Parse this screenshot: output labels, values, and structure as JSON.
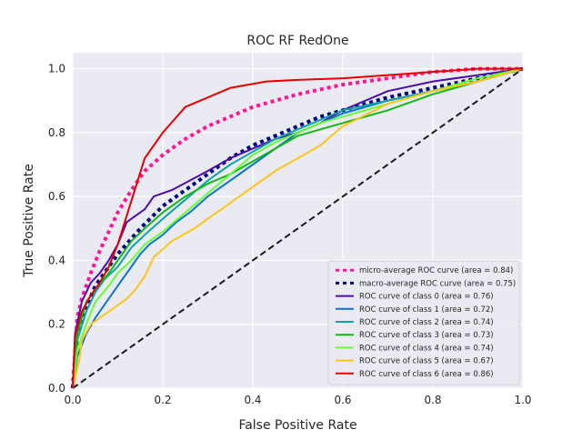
{
  "chart_data": {
    "type": "line",
    "title": "ROC RF RedOne",
    "xlabel": "False Positive Rate",
    "ylabel": "True Positive Rate",
    "xlim": [
      0.0,
      1.0
    ],
    "ylim": [
      0.0,
      1.05
    ],
    "xticks": [
      0.0,
      0.2,
      0.4,
      0.6,
      0.8,
      1.0
    ],
    "yticks": [
      0.0,
      0.2,
      0.4,
      0.6,
      0.8,
      1.0
    ],
    "xtick_labels": [
      "0.0",
      "0.2",
      "0.4",
      "0.6",
      "0.8",
      "1.0"
    ],
    "ytick_labels": [
      "0.0",
      "0.2",
      "0.4",
      "0.6",
      "0.8",
      "1.0"
    ],
    "grid": true,
    "legend_position": "lower-right",
    "background": "#eaeaf2",
    "series": [
      {
        "name": "micro-average ROC curve (area = 0.84)",
        "style": "dotted",
        "color": "#ff1493",
        "x": [
          0.0,
          0.01,
          0.02,
          0.04,
          0.06,
          0.08,
          0.1,
          0.13,
          0.16,
          0.2,
          0.25,
          0.3,
          0.35,
          0.4,
          0.45,
          0.5,
          0.6,
          0.7,
          0.8,
          0.9,
          1.0
        ],
        "y": [
          0.0,
          0.22,
          0.28,
          0.36,
          0.43,
          0.49,
          0.55,
          0.62,
          0.68,
          0.73,
          0.78,
          0.82,
          0.85,
          0.88,
          0.9,
          0.92,
          0.95,
          0.97,
          0.99,
          1.0,
          1.0
        ]
      },
      {
        "name": "macro-average ROC curve (area = 0.75)",
        "style": "dotted",
        "color": "#000080",
        "x": [
          0.0,
          0.01,
          0.02,
          0.05,
          0.08,
          0.1,
          0.15,
          0.2,
          0.25,
          0.3,
          0.35,
          0.4,
          0.45,
          0.5,
          0.55,
          0.6,
          0.7,
          0.8,
          0.9,
          1.0
        ],
        "y": [
          0.0,
          0.17,
          0.22,
          0.32,
          0.38,
          0.42,
          0.5,
          0.57,
          0.62,
          0.67,
          0.72,
          0.76,
          0.79,
          0.82,
          0.85,
          0.87,
          0.91,
          0.94,
          0.97,
          1.0
        ]
      },
      {
        "name": "ROC curve of class 0 (area = 0.76)",
        "style": "solid",
        "color": "#4b0fa8",
        "x": [
          0.0,
          0.005,
          0.02,
          0.04,
          0.06,
          0.08,
          0.1,
          0.12,
          0.14,
          0.16,
          0.18,
          0.22,
          0.26,
          0.3,
          0.35,
          0.4,
          0.45,
          0.5,
          0.55,
          0.6,
          0.7,
          0.8,
          0.9,
          1.0
        ],
        "y": [
          0.0,
          0.17,
          0.27,
          0.33,
          0.36,
          0.4,
          0.45,
          0.52,
          0.54,
          0.56,
          0.6,
          0.62,
          0.65,
          0.68,
          0.72,
          0.75,
          0.78,
          0.8,
          0.83,
          0.87,
          0.93,
          0.96,
          0.98,
          1.0
        ]
      },
      {
        "name": "ROC curve of class 1 (area = 0.72)",
        "style": "solid",
        "color": "#0d74d3",
        "x": [
          0.0,
          0.01,
          0.03,
          0.05,
          0.07,
          0.09,
          0.11,
          0.13,
          0.15,
          0.17,
          0.2,
          0.23,
          0.26,
          0.3,
          0.35,
          0.4,
          0.45,
          0.5,
          0.6,
          0.7,
          0.8,
          0.9,
          1.0
        ],
        "y": [
          0.0,
          0.1,
          0.17,
          0.22,
          0.26,
          0.3,
          0.34,
          0.38,
          0.42,
          0.45,
          0.48,
          0.52,
          0.55,
          0.6,
          0.65,
          0.7,
          0.75,
          0.8,
          0.86,
          0.9,
          0.93,
          0.96,
          1.0
        ]
      },
      {
        "name": "ROC curve of class 2 (area = 0.74)",
        "style": "solid",
        "color": "#0fa3a3",
        "x": [
          0.0,
          0.01,
          0.03,
          0.05,
          0.07,
          0.1,
          0.13,
          0.16,
          0.2,
          0.25,
          0.3,
          0.35,
          0.4,
          0.45,
          0.5,
          0.55,
          0.6,
          0.7,
          0.8,
          0.9,
          1.0
        ],
        "y": [
          0.0,
          0.15,
          0.24,
          0.3,
          0.34,
          0.38,
          0.44,
          0.48,
          0.53,
          0.59,
          0.65,
          0.7,
          0.74,
          0.78,
          0.81,
          0.84,
          0.87,
          0.9,
          0.93,
          0.96,
          1.0
        ]
      },
      {
        "name": "ROC curve of class 3 (area = 0.73)",
        "style": "solid",
        "color": "#12b812",
        "x": [
          0.0,
          0.01,
          0.03,
          0.05,
          0.08,
          0.1,
          0.13,
          0.16,
          0.2,
          0.25,
          0.3,
          0.35,
          0.4,
          0.45,
          0.5,
          0.55,
          0.6,
          0.7,
          0.8,
          0.9,
          1.0
        ],
        "y": [
          0.0,
          0.17,
          0.27,
          0.31,
          0.36,
          0.4,
          0.46,
          0.5,
          0.55,
          0.6,
          0.64,
          0.67,
          0.71,
          0.75,
          0.79,
          0.81,
          0.83,
          0.87,
          0.92,
          0.96,
          1.0
        ]
      },
      {
        "name": "ROC curve of class 4 (area = 0.74)",
        "style": "solid",
        "color": "#66ff33",
        "x": [
          0.0,
          0.01,
          0.03,
          0.05,
          0.08,
          0.1,
          0.13,
          0.16,
          0.2,
          0.25,
          0.3,
          0.35,
          0.4,
          0.45,
          0.5,
          0.55,
          0.6,
          0.7,
          0.8,
          0.9,
          1.0
        ],
        "y": [
          0.0,
          0.12,
          0.2,
          0.27,
          0.32,
          0.36,
          0.4,
          0.45,
          0.49,
          0.55,
          0.61,
          0.67,
          0.73,
          0.77,
          0.8,
          0.83,
          0.85,
          0.89,
          0.93,
          0.97,
          1.0
        ]
      },
      {
        "name": "ROC curve of class 5 (area = 0.67)",
        "style": "solid",
        "color": "#ffc41a",
        "x": [
          0.0,
          0.015,
          0.02,
          0.04,
          0.06,
          0.08,
          0.1,
          0.12,
          0.14,
          0.16,
          0.18,
          0.22,
          0.27,
          0.3,
          0.35,
          0.4,
          0.45,
          0.5,
          0.55,
          0.6,
          0.7,
          0.8,
          0.9,
          1.0
        ],
        "y": [
          0.0,
          0.09,
          0.15,
          0.2,
          0.22,
          0.24,
          0.26,
          0.28,
          0.31,
          0.35,
          0.41,
          0.46,
          0.5,
          0.53,
          0.58,
          0.63,
          0.68,
          0.72,
          0.76,
          0.82,
          0.89,
          0.93,
          0.96,
          1.0
        ]
      },
      {
        "name": "ROC curve of class 6 (area = 0.86)",
        "style": "solid",
        "color": "#e60000",
        "x": [
          0.0,
          0.005,
          0.02,
          0.04,
          0.06,
          0.08,
          0.1,
          0.12,
          0.14,
          0.16,
          0.2,
          0.25,
          0.3,
          0.35,
          0.43,
          0.5,
          0.6,
          0.7,
          0.8,
          0.9,
          1.0
        ],
        "y": [
          0.0,
          0.16,
          0.24,
          0.29,
          0.33,
          0.38,
          0.45,
          0.54,
          0.63,
          0.72,
          0.8,
          0.88,
          0.91,
          0.94,
          0.96,
          0.965,
          0.97,
          0.98,
          0.99,
          1.0,
          1.0
        ]
      }
    ],
    "reference_line": {
      "style": "dashed",
      "color": "#1a1a1a",
      "x": [
        0.0,
        1.0
      ],
      "y": [
        0.0,
        1.0
      ]
    }
  }
}
